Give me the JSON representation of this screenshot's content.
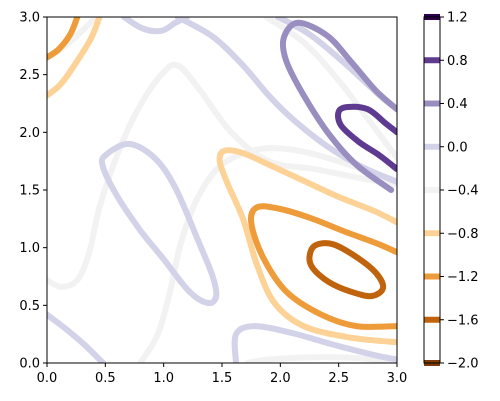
{
  "chart_data": {
    "type": "contour",
    "title": "",
    "xlabel": "",
    "ylabel": "",
    "xlim": [
      0.0,
      3.0
    ],
    "ylim": [
      0.0,
      3.0
    ],
    "x_ticks": [
      "0.0",
      "0.5",
      "1.0",
      "1.5",
      "2.0",
      "2.5",
      "3.0"
    ],
    "y_ticks": [
      "0.0",
      "0.5",
      "1.0",
      "1.5",
      "2.0",
      "2.5",
      "3.0"
    ],
    "colormap": "PuOr",
    "levels": [
      -2.0,
      -1.6,
      -1.2,
      -0.8,
      -0.4,
      0.0,
      0.4,
      0.8,
      1.2
    ],
    "level_colors": [
      "#7f3b08",
      "#c0630d",
      "#ee9b3a",
      "#fdd296",
      "#f2f2f2",
      "#d2d2e8",
      "#9a8ec0",
      "#5e3a90",
      "#2d004b"
    ],
    "colorbar": {
      "position": "right",
      "tick_labels": [
        "1.2",
        "0.8",
        "0.4",
        "0.0",
        "−0.4",
        "−0.8",
        "−1.2",
        "−1.6",
        "−2.0"
      ]
    },
    "legend": "none",
    "grid": false
  }
}
